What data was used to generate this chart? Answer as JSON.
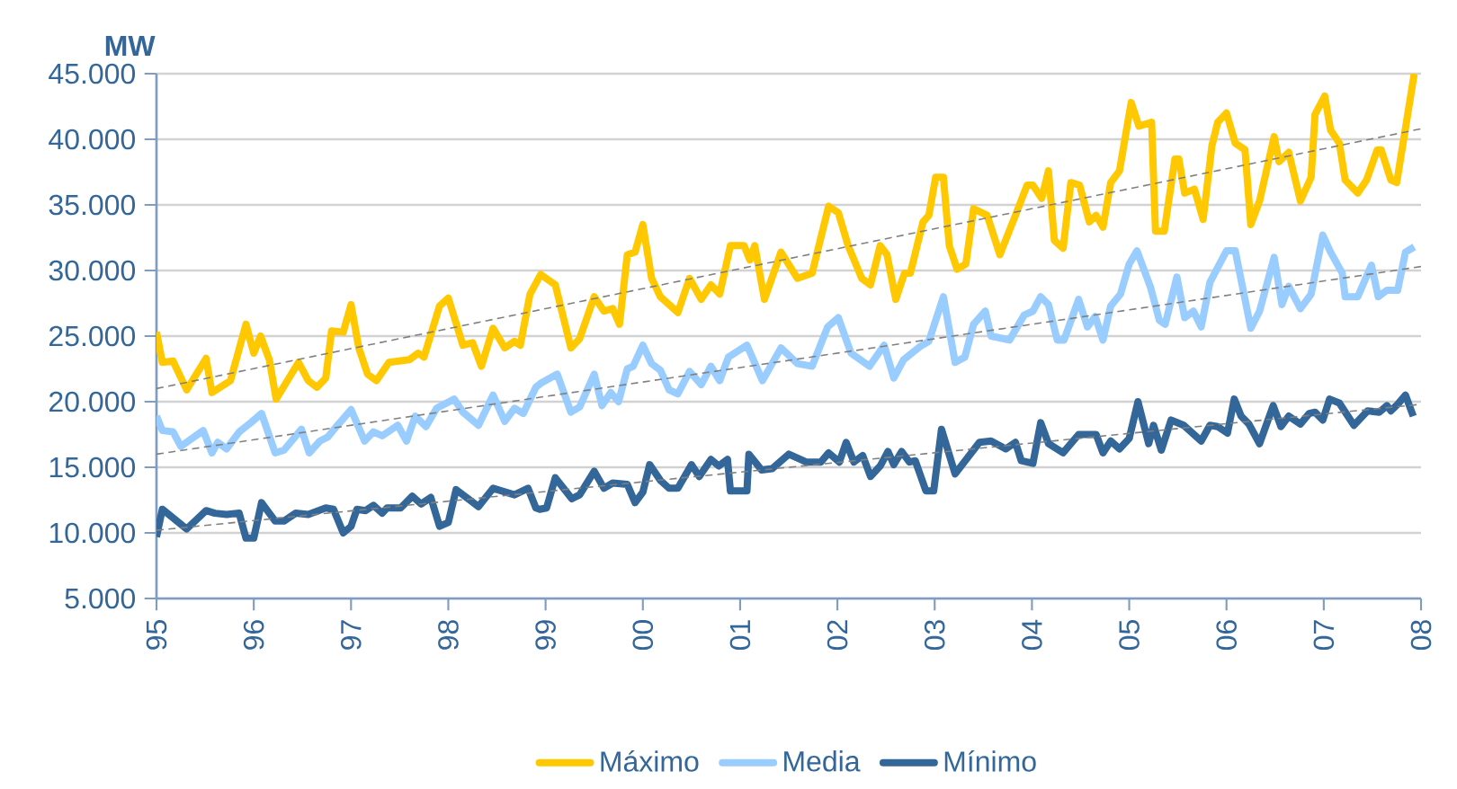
{
  "chart_data": {
    "type": "line",
    "ylabel": "MW",
    "xlim": [
      1995,
      2008
    ],
    "xticks": [
      {
        "value": 1995,
        "label": "95"
      },
      {
        "value": 1996,
        "label": "96"
      },
      {
        "value": 1997,
        "label": "97"
      },
      {
        "value": 1998,
        "label": "98"
      },
      {
        "value": 1999,
        "label": "99"
      },
      {
        "value": 2000,
        "label": "00"
      },
      {
        "value": 2001,
        "label": "01"
      },
      {
        "value": 2002,
        "label": "02"
      },
      {
        "value": 2003,
        "label": "03"
      },
      {
        "value": 2004,
        "label": "04"
      },
      {
        "value": 2005,
        "label": "05"
      },
      {
        "value": 2006,
        "label": "06"
      },
      {
        "value": 2007,
        "label": "07"
      },
      {
        "value": 2008,
        "label": "08"
      }
    ],
    "ylim": [
      5000,
      45000
    ],
    "yticks": [
      {
        "value": 5000,
        "label": "5.000"
      },
      {
        "value": 10000,
        "label": "10.000"
      },
      {
        "value": 15000,
        "label": "15.000"
      },
      {
        "value": 20000,
        "label": "20.000"
      },
      {
        "value": 25000,
        "label": "25.000"
      },
      {
        "value": 30000,
        "label": "30.000"
      },
      {
        "value": 35000,
        "label": "35.000"
      },
      {
        "value": 40000,
        "label": "40.000"
      },
      {
        "value": 45000,
        "label": "45.000"
      }
    ],
    "grid": "y",
    "legend": "bottom",
    "marker": "none",
    "series": [
      {
        "name": "Máximo",
        "color": "#ffc800",
        "line_style": "solid",
        "x": [
          1995.0,
          1995.06,
          1995.17,
          1995.31,
          1995.51,
          1995.57,
          1995.76,
          1995.92,
          1996.0,
          1996.07,
          1996.16,
          1996.23,
          1996.46,
          1996.56,
          1996.65,
          1996.74,
          1996.8,
          1996.92,
          1997.0,
          1997.08,
          1997.17,
          1997.26,
          1997.39,
          1997.6,
          1997.69,
          1997.75,
          1997.91,
          1998.0,
          1998.15,
          1998.25,
          1998.34,
          1998.46,
          1998.58,
          1998.68,
          1998.74,
          1998.84,
          1998.95,
          1999.1,
          1999.26,
          1999.35,
          1999.5,
          1999.6,
          1999.69,
          1999.76,
          1999.84,
          1999.92,
          2000.0,
          2000.09,
          2000.18,
          2000.36,
          2000.48,
          2000.6,
          2000.7,
          2000.79,
          2000.9,
          2001.04,
          2001.1,
          2001.15,
          2001.25,
          2001.42,
          2001.59,
          2001.74,
          2001.91,
          2002.01,
          2002.11,
          2002.25,
          2002.34,
          2002.44,
          2002.51,
          2002.6,
          2002.69,
          2002.75,
          2002.88,
          2002.94,
          2003.01,
          2003.09,
          2003.15,
          2003.23,
          2003.32,
          2003.4,
          2003.54,
          2003.67,
          2003.83,
          2003.95,
          2004.01,
          2004.1,
          2004.17,
          2004.23,
          2004.32,
          2004.4,
          2004.49,
          2004.59,
          2004.66,
          2004.73,
          2004.81,
          2004.9,
          2005.02,
          2005.1,
          2005.23,
          2005.27,
          2005.36,
          2005.47,
          2005.51,
          2005.57,
          2005.67,
          2005.76,
          2005.85,
          2005.91,
          2006.0,
          2006.09,
          2006.19,
          2006.25,
          2006.34,
          2006.49,
          2006.54,
          2006.64,
          2006.76,
          2006.87,
          2006.91,
          2007.01,
          2007.07,
          2007.16,
          2007.22,
          2007.35,
          2007.44,
          2007.55,
          2007.59,
          2007.69,
          2007.75,
          2007.93
        ],
        "values": [
          25300,
          23000,
          23100,
          20900,
          23300,
          20700,
          21600,
          25900,
          23700,
          25000,
          23200,
          20200,
          23000,
          21600,
          21100,
          21800,
          25400,
          25300,
          27400,
          24100,
          22100,
          21600,
          23000,
          23200,
          23700,
          23400,
          27300,
          27900,
          24300,
          24500,
          22700,
          25600,
          24100,
          24600,
          24300,
          28200,
          29700,
          28900,
          24100,
          24800,
          28000,
          26900,
          27100,
          25900,
          31200,
          31400,
          33500,
          29400,
          28000,
          26800,
          29400,
          27800,
          28900,
          28200,
          31900,
          31900,
          30800,
          31900,
          27800,
          31400,
          29400,
          29800,
          34900,
          34400,
          31900,
          29400,
          28900,
          31900,
          31200,
          27800,
          29800,
          29800,
          33700,
          34200,
          37100,
          37100,
          31900,
          30100,
          30500,
          34700,
          34200,
          31200,
          34200,
          36500,
          36500,
          35500,
          37600,
          32300,
          31700,
          36700,
          36500,
          33700,
          34200,
          33300,
          36700,
          37600,
          42800,
          41000,
          41300,
          33000,
          33000,
          38500,
          38500,
          35900,
          36200,
          33900,
          39500,
          41300,
          42000,
          39700,
          39200,
          33500,
          35300,
          40200,
          38300,
          39000,
          35300,
          37100,
          41900,
          43300,
          40700,
          39700,
          36900,
          35900,
          36900,
          39200,
          39200,
          36900,
          36700,
          45000
        ]
      },
      {
        "name": "Media",
        "color": "#99ccff",
        "line_style": "solid",
        "x": [
          1995.0,
          1995.06,
          1995.17,
          1995.25,
          1995.48,
          1995.57,
          1995.63,
          1995.72,
          1995.85,
          1995.97,
          1996.08,
          1996.22,
          1996.31,
          1996.49,
          1996.57,
          1996.68,
          1996.76,
          1996.86,
          1997.0,
          1997.14,
          1997.23,
          1997.32,
          1997.48,
          1997.57,
          1997.66,
          1997.77,
          1997.88,
          1998.06,
          1998.15,
          1998.31,
          1998.46,
          1998.58,
          1998.68,
          1998.77,
          1998.9,
          1998.95,
          1999.12,
          1999.26,
          1999.35,
          1999.5,
          1999.58,
          1999.67,
          1999.75,
          1999.84,
          1999.9,
          2000.0,
          2000.09,
          2000.18,
          2000.27,
          2000.36,
          2000.48,
          2000.6,
          2000.7,
          2000.79,
          2000.88,
          2001.07,
          2001.23,
          2001.42,
          2001.59,
          2001.74,
          2001.9,
          2002.01,
          2002.14,
          2002.33,
          2002.48,
          2002.58,
          2002.68,
          2002.85,
          2002.94,
          2003.09,
          2003.21,
          2003.31,
          2003.4,
          2003.52,
          2003.58,
          2003.77,
          2003.92,
          2004.01,
          2004.09,
          2004.17,
          2004.26,
          2004.33,
          2004.48,
          2004.57,
          2004.65,
          2004.73,
          2004.81,
          2004.91,
          2005.0,
          2005.08,
          2005.22,
          2005.31,
          2005.37,
          2005.49,
          2005.57,
          2005.66,
          2005.74,
          2005.83,
          2006.0,
          2006.09,
          2006.25,
          2006.34,
          2006.49,
          2006.57,
          2006.64,
          2006.76,
          2006.87,
          2006.99,
          2007.07,
          2007.19,
          2007.22,
          2007.35,
          2007.49,
          2007.56,
          2007.65,
          2007.76,
          2007.84,
          2007.93
        ],
        "values": [
          18900,
          17800,
          17700,
          16600,
          17800,
          16100,
          16900,
          16400,
          17700,
          18400,
          19100,
          16100,
          16300,
          17900,
          16100,
          17000,
          17300,
          18200,
          19400,
          17000,
          17700,
          17400,
          18200,
          17000,
          18900,
          18100,
          19500,
          20200,
          19200,
          18200,
          20500,
          18500,
          19500,
          19100,
          21100,
          21400,
          22100,
          19200,
          19600,
          22100,
          19700,
          20700,
          20000,
          22500,
          22700,
          24300,
          22900,
          22400,
          20900,
          20600,
          22300,
          21300,
          22700,
          21600,
          23400,
          24300,
          21600,
          24100,
          22900,
          22700,
          25700,
          26400,
          23700,
          22700,
          24300,
          21800,
          23200,
          24200,
          24600,
          28000,
          23000,
          23400,
          25900,
          26900,
          25000,
          24700,
          26600,
          26900,
          28000,
          27400,
          24700,
          24700,
          27800,
          25700,
          26500,
          24700,
          27300,
          28200,
          30500,
          31500,
          28700,
          26200,
          25900,
          29500,
          26400,
          26900,
          25700,
          29100,
          31500,
          31500,
          25600,
          26900,
          31000,
          27400,
          28800,
          27100,
          28200,
          32700,
          31400,
          29800,
          28000,
          28000,
          30400,
          28000,
          28500,
          28500,
          31400,
          31800
        ]
      },
      {
        "name": "Mínimo",
        "color": "#336699",
        "line_style": "solid",
        "x": [
          1995.0,
          1995.06,
          1995.31,
          1995.51,
          1995.6,
          1995.72,
          1995.85,
          1995.92,
          1996.0,
          1996.08,
          1996.22,
          1996.31,
          1996.43,
          1996.56,
          1996.74,
          1996.82,
          1996.92,
          1997.0,
          1997.06,
          1997.15,
          1997.23,
          1997.32,
          1997.37,
          1997.51,
          1997.63,
          1997.72,
          1997.82,
          1997.91,
          1998.0,
          1998.08,
          1998.31,
          1998.46,
          1998.68,
          1998.82,
          1998.9,
          1998.94,
          1999.01,
          1999.1,
          1999.27,
          1999.35,
          1999.5,
          1999.6,
          1999.69,
          1999.84,
          1999.92,
          2000.0,
          2000.07,
          2000.18,
          2000.27,
          2000.36,
          2000.5,
          2000.58,
          2000.7,
          2000.78,
          2000.87,
          2000.9,
          2001.07,
          2001.09,
          2001.22,
          2001.33,
          2001.5,
          2001.68,
          2001.83,
          2001.91,
          2002.02,
          2002.09,
          2002.17,
          2002.26,
          2002.34,
          2002.44,
          2002.52,
          2002.58,
          2002.66,
          2002.74,
          2002.8,
          2002.91,
          2002.99,
          2003.07,
          2003.21,
          2003.46,
          2003.58,
          2003.73,
          2003.83,
          2003.89,
          2004.01,
          2004.09,
          2004.17,
          2004.32,
          2004.48,
          2004.66,
          2004.73,
          2004.81,
          2004.9,
          2005.0,
          2005.09,
          2005.2,
          2005.25,
          2005.33,
          2005.43,
          2005.56,
          2005.74,
          2005.83,
          2005.91,
          2006.01,
          2006.08,
          2006.15,
          2006.23,
          2006.34,
          2006.48,
          2006.56,
          2006.64,
          2006.76,
          2006.85,
          2006.91,
          2006.99,
          2007.06,
          2007.16,
          2007.31,
          2007.45,
          2007.57,
          2007.65,
          2007.69,
          2007.76,
          2007.84,
          2007.92
        ],
        "values": [
          9700,
          11800,
          10300,
          11700,
          11500,
          11400,
          11500,
          9600,
          9600,
          12300,
          10900,
          10900,
          11500,
          11400,
          11900,
          11800,
          10000,
          10500,
          11800,
          11700,
          12100,
          11500,
          11900,
          11900,
          12800,
          12200,
          12700,
          10500,
          10800,
          13300,
          12000,
          13400,
          12900,
          13400,
          11900,
          11800,
          11900,
          14200,
          12600,
          12900,
          14700,
          13400,
          13800,
          13700,
          12300,
          13100,
          15200,
          14000,
          13400,
          13400,
          15200,
          14300,
          15600,
          15100,
          15600,
          13200,
          13200,
          16000,
          14800,
          14900,
          16000,
          15400,
          15400,
          16100,
          15400,
          16900,
          15400,
          15900,
          14300,
          15100,
          16200,
          15200,
          16200,
          15400,
          15500,
          13200,
          13200,
          17900,
          14500,
          16900,
          17000,
          16400,
          16900,
          15500,
          15300,
          18400,
          16800,
          16100,
          17500,
          17500,
          16100,
          17000,
          16400,
          17200,
          20000,
          16800,
          18200,
          16300,
          18600,
          18200,
          17000,
          18200,
          18100,
          17600,
          20200,
          18900,
          18300,
          16800,
          19700,
          18100,
          18900,
          18300,
          19100,
          19200,
          18600,
          20200,
          19900,
          18200,
          19300,
          19200,
          19700,
          19300,
          19800,
          20500,
          18900
        ]
      },
      {
        "type": "line",
        "color": "#808080",
        "line_style": "dashed",
        "x": [
          1995,
          2008
        ],
        "values": [
          21000,
          40800
        ]
      },
      {
        "type": "line",
        "color": "#808080",
        "line_style": "dashed",
        "x": [
          1995,
          2008
        ],
        "values": [
          16000,
          30300
        ]
      },
      {
        "type": "line",
        "color": "#808080",
        "line_style": "dashed",
        "x": [
          1995,
          2008
        ],
        "values": [
          10200,
          19800
        ]
      }
    ]
  }
}
